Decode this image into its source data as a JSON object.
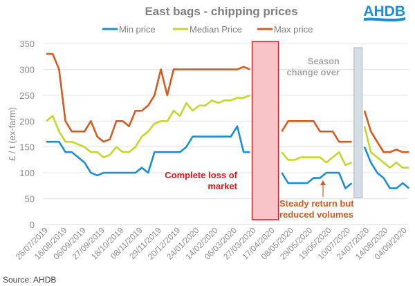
{
  "logo": {
    "text": "AHDB",
    "color": "#1d8fcf"
  },
  "source": "Source: AHDB",
  "chart_data": {
    "type": "line",
    "title": "East bags - chipping prices",
    "xlabel": "",
    "ylabel": "£ / t (ex-farm)",
    "ylim": [
      0,
      350
    ],
    "yticks": [
      0,
      50,
      100,
      150,
      200,
      250,
      300,
      350
    ],
    "grid": true,
    "legend_position": "top-center",
    "x_tick_labels": [
      "26/07/2019",
      "16/08/2019",
      "06/09/2019",
      "27/09/2019",
      "18/10/2019",
      "08/11/2019",
      "29/11/2019",
      "20/12/2019",
      "24/01/2020",
      "14/02/2020",
      "06/03/2020",
      "27/03/2020",
      "17/04/2020",
      "08/05/2020",
      "29/05/2020",
      "19/06/2020",
      "10/07/2020",
      "24/07/2020",
      "14/08/2020",
      "04/09/2020"
    ],
    "segments": [
      {
        "name": "pre-lockdown",
        "points": 33,
        "series": {
          "min": [
            160,
            160,
            160,
            140,
            140,
            130,
            120,
            100,
            95,
            100,
            100,
            100,
            100,
            100,
            100,
            110,
            100,
            140,
            140,
            140,
            140,
            140,
            150,
            170,
            170,
            170,
            170,
            170,
            170,
            170,
            190,
            140,
            140
          ],
          "median": [
            200,
            210,
            180,
            160,
            160,
            155,
            150,
            140,
            140,
            130,
            135,
            150,
            140,
            140,
            150,
            170,
            180,
            195,
            200,
            200,
            220,
            210,
            235,
            220,
            230,
            230,
            240,
            235,
            240,
            240,
            245,
            245,
            250
          ],
          "max": [
            330,
            330,
            300,
            200,
            180,
            180,
            180,
            200,
            170,
            160,
            165,
            200,
            200,
            190,
            220,
            220,
            230,
            250,
            300,
            250,
            300,
            300,
            300,
            300,
            300,
            300,
            300,
            300,
            300,
            300,
            300,
            305,
            300
          ]
        }
      },
      {
        "name": "gap-lockdown",
        "points": 4,
        "series": null
      },
      {
        "name": "steady-return",
        "points": 12,
        "series": {
          "min": [
            100,
            80,
            80,
            80,
            80,
            90,
            90,
            100,
            100,
            100,
            70,
            80
          ],
          "median": [
            140,
            125,
            125,
            130,
            130,
            130,
            130,
            120,
            130,
            140,
            115,
            120
          ],
          "max": [
            180,
            200,
            200,
            200,
            200,
            200,
            180,
            180,
            180,
            160,
            160,
            160
          ]
        }
      },
      {
        "name": "gap-season-change",
        "points": 1,
        "series": null
      },
      {
        "name": "new-season",
        "points": 8,
        "series": {
          "min": [
            150,
            120,
            100,
            90,
            70,
            70,
            80,
            70
          ],
          "median": [
            190,
            140,
            130,
            120,
            110,
            120,
            110,
            110
          ],
          "max": [
            220,
            180,
            160,
            140,
            140,
            145,
            140,
            140
          ]
        }
      }
    ],
    "series_meta": [
      {
        "key": "min",
        "name": "Min price",
        "color": "#1a8fd0"
      },
      {
        "key": "median",
        "name": "Median Price",
        "color": "#c3d62a"
      },
      {
        "key": "max",
        "name": "Max price",
        "color": "#d45b1e"
      }
    ],
    "annotations": [
      {
        "id": "loss",
        "text_lines": [
          "Complete loss of",
          "market"
        ],
        "color": "#e8141e",
        "highlight_fill": "#f9c4c6",
        "highlight_border": "#e8141e"
      },
      {
        "id": "season",
        "text_lines": [
          "Season",
          "change over"
        ],
        "color": "#a6a6a6",
        "highlight_fill": "#d4dde3",
        "highlight_border": "#a9b6bf"
      },
      {
        "id": "steady",
        "text_lines": [
          "Steady return but",
          "reduced volumes"
        ],
        "color": "#d25a1e"
      }
    ]
  }
}
